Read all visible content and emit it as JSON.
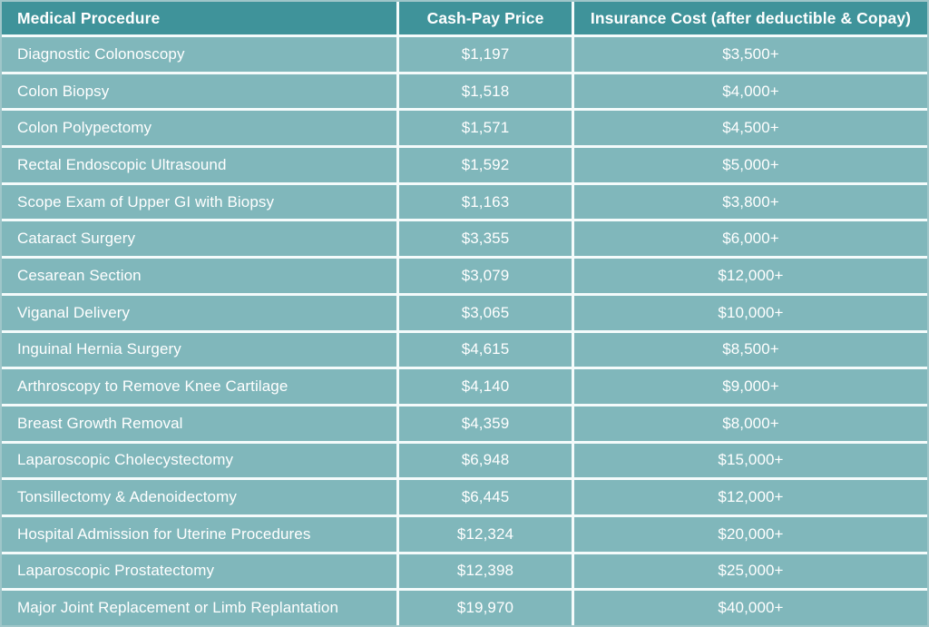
{
  "chart_data": {
    "type": "table",
    "columns": [
      "Medical Procedure",
      "Cash-Pay Price",
      "Insurance Cost (after deductible & Copay)"
    ],
    "rows": [
      [
        "Diagnostic Colonoscopy",
        "$1,197",
        "$3,500+"
      ],
      [
        "Colon Biopsy",
        "$1,518",
        "$4,000+"
      ],
      [
        "Colon Polypectomy",
        "$1,571",
        "$4,500+"
      ],
      [
        "Rectal Endoscopic Ultrasound",
        "$1,592",
        "$5,000+"
      ],
      [
        "Scope Exam of Upper GI with Biopsy",
        "$1,163",
        "$3,800+"
      ],
      [
        "Cataract Surgery",
        "$3,355",
        "$6,000+"
      ],
      [
        "Cesarean Section",
        "$3,079",
        "$12,000+"
      ],
      [
        "Viganal Delivery",
        "$3,065",
        "$10,000+"
      ],
      [
        "Inguinal Hernia Surgery",
        "$4,615",
        "$8,500+"
      ],
      [
        "Arthroscopy to Remove Knee Cartilage",
        "$4,140",
        "$9,000+"
      ],
      [
        "Breast Growth Removal",
        "$4,359",
        "$8,000+"
      ],
      [
        "Laparoscopic Cholecystectomy",
        "$6,948",
        "$15,000+"
      ],
      [
        "Tonsillectomy & Adenoidectomy",
        "$6,445",
        "$12,000+"
      ],
      [
        "Hospital Admission for Uterine Procedures",
        "$12,324",
        "$20,000+"
      ],
      [
        "Laparoscopic Prostatectomy",
        "$12,398",
        "$25,000+"
      ],
      [
        "Major Joint Replacement or Limb Replantation",
        "$19,970",
        "$40,000+"
      ]
    ],
    "layout": {
      "grid": "on",
      "header_row": true,
      "column_alignments": [
        "left",
        "center",
        "center"
      ]
    }
  },
  "colors": {
    "header_bg": "#3F939A",
    "row_bg": "#80B7BB",
    "grid_line": "#F4FBFB",
    "outer_border": "#9FC6C9",
    "text": "#FFFFFF"
  }
}
